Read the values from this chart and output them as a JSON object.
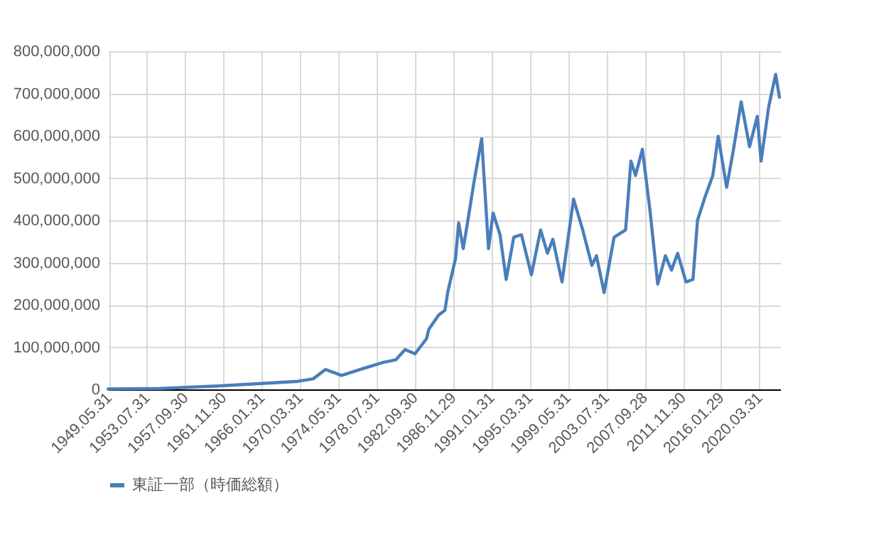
{
  "chart_data": {
    "type": "line",
    "legend": "bottom",
    "grid": true,
    "marker": "none",
    "line_style": "solid",
    "xlim": [
      "1949-05",
      "2022-07"
    ],
    "xticks": [
      {
        "value": "1949-05-31",
        "label": "1949.05.31"
      },
      {
        "value": "1953-07-31",
        "label": "1953.07.31"
      },
      {
        "value": "1957-09-30",
        "label": "1957.09.30"
      },
      {
        "value": "1961-11-30",
        "label": "1961.11.30"
      },
      {
        "value": "1966-01-31",
        "label": "1966.01.31"
      },
      {
        "value": "1970-03-31",
        "label": "1970.03.31"
      },
      {
        "value": "1974-05-31",
        "label": "1974.05.31"
      },
      {
        "value": "1978-07-31",
        "label": "1978.07.31"
      },
      {
        "value": "1982-09-30",
        "label": "1982.09.30"
      },
      {
        "value": "1986-11-29",
        "label": "1986.11.29"
      },
      {
        "value": "1991-01-31",
        "label": "1991.01.31"
      },
      {
        "value": "1995-03-31",
        "label": "1995.03.31"
      },
      {
        "value": "1999-05-31",
        "label": "1999.05.31"
      },
      {
        "value": "2003-07-31",
        "label": "2003.07.31"
      },
      {
        "value": "2007-09-28",
        "label": "2007.09.28"
      },
      {
        "value": "2011-11-30",
        "label": "2011.11.30"
      },
      {
        "value": "2016-01-29",
        "label": "2016.01.29"
      },
      {
        "value": "2020-03-31",
        "label": "2020.03.31"
      }
    ],
    "ylim": [
      0,
      800000000
    ],
    "yticks": [
      {
        "value": 0,
        "label": "0"
      },
      {
        "value": 100000000,
        "label": "100,000,000"
      },
      {
        "value": 200000000,
        "label": "200,000,000"
      },
      {
        "value": 300000000,
        "label": "300,000,000"
      },
      {
        "value": 400000000,
        "label": "400,000,000"
      },
      {
        "value": 500000000,
        "label": "500,000,000"
      },
      {
        "value": 600000000,
        "label": "600,000,000"
      },
      {
        "value": 700000000,
        "label": "700,000,000"
      },
      {
        "value": 800000000,
        "label": "800,000,000"
      }
    ],
    "x": [
      "1949-05",
      "1955-01",
      "1961-04",
      "1970-01",
      "1971-09",
      "1973-01",
      "1974-10",
      "1976-10",
      "1979-05",
      "1980-09",
      "1981-09",
      "1982-10",
      "1984-01",
      "1984-04",
      "1985-05",
      "1986-01",
      "1986-05",
      "1987-03",
      "1987-07",
      "1988-01",
      "1988-09",
      "1989-03",
      "1990-01",
      "1990-10",
      "1991-04",
      "1992-01",
      "1992-09",
      "1993-07",
      "1994-05",
      "1995-06",
      "1996-06",
      "1997-03",
      "1997-10",
      "1998-10",
      "2000-01",
      "2001-01",
      "2002-01",
      "2002-07",
      "2003-05",
      "2004-06",
      "2005-09",
      "2006-04",
      "2006-10",
      "2007-07",
      "2008-05",
      "2009-03",
      "2010-01",
      "2010-09",
      "2011-05",
      "2012-04",
      "2013-01",
      "2013-07",
      "2014-05",
      "2015-03",
      "2015-10",
      "2016-09",
      "2017-06",
      "2018-04",
      "2019-03",
      "2020-01",
      "2020-06",
      "2021-04",
      "2022-01",
      "2022-06"
    ],
    "series": [
      {
        "name": "東証一部（時価総額）",
        "color": "#4a7ebb",
        "values": [
          1000000,
          2000000,
          8000000,
          19000000,
          25000000,
          47000000,
          33000000,
          47000000,
          64000000,
          70000000,
          94000000,
          84000000,
          120000000,
          142000000,
          176000000,
          187000000,
          232000000,
          310000000,
          394000000,
          333000000,
          422000000,
          490000000,
          593000000,
          333000000,
          417000000,
          366000000,
          260000000,
          360000000,
          366000000,
          271000000,
          377000000,
          322000000,
          355000000,
          254000000,
          450000000,
          377000000,
          293000000,
          316000000,
          229000000,
          360000000,
          377000000,
          540000000,
          506000000,
          568000000,
          422000000,
          249000000,
          316000000,
          282000000,
          322000000,
          254000000,
          260000000,
          400000000,
          456000000,
          506000000,
          599000000,
          478000000,
          568000000,
          680000000,
          574000000,
          646000000,
          540000000,
          669000000,
          745000000,
          691000000
        ]
      }
    ]
  }
}
